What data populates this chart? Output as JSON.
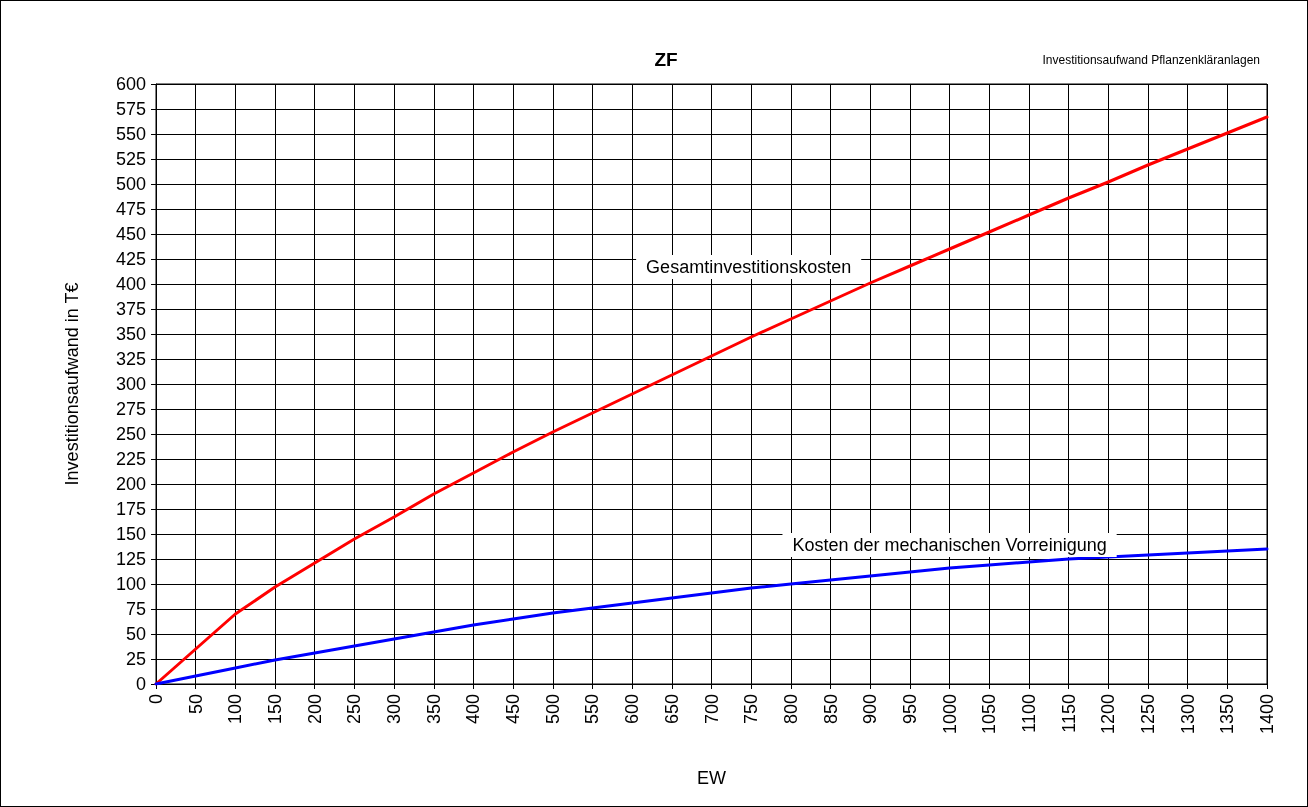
{
  "chart_data": {
    "type": "line",
    "title": "ZF",
    "subtitle": "Investitionsaufwand Pflanzenkläranlagen",
    "xlabel": "EW",
    "ylabel": "Investitionsaufwand in T€",
    "x": [
      0,
      50,
      100,
      150,
      200,
      250,
      300,
      350,
      400,
      450,
      500,
      550,
      600,
      650,
      700,
      750,
      800,
      850,
      900,
      950,
      1000,
      1050,
      1100,
      1150,
      1200,
      1250,
      1300,
      1350,
      1400
    ],
    "series": [
      {
        "name": "Gesamtinvestitionskosten",
        "color": "#ff0000",
        "values": [
          0,
          35,
          70,
          97,
          121,
          145,
          167,
          190,
          211,
          232,
          252,
          271,
          290,
          309,
          328,
          347,
          365,
          383,
          401,
          418,
          435,
          452,
          469,
          486,
          502,
          519,
          535,
          551,
          567
        ]
      },
      {
        "name": "Kosten der mechanischen Vorreinigung",
        "color": "#0000ff",
        "values": [
          0,
          8,
          16,
          24,
          31,
          38,
          45,
          52,
          59,
          65,
          71,
          76,
          81,
          86,
          91,
          96,
          100,
          104,
          108,
          112,
          116,
          119,
          122,
          125,
          127,
          129,
          131,
          133,
          135
        ]
      }
    ],
    "xlim": [
      0,
      1400
    ],
    "xticks": [
      0,
      50,
      100,
      150,
      200,
      250,
      300,
      350,
      400,
      450,
      500,
      550,
      600,
      650,
      700,
      750,
      800,
      850,
      900,
      950,
      1000,
      1050,
      1100,
      1150,
      1200,
      1250,
      1300,
      1350,
      1400
    ],
    "ylim": [
      0,
      600
    ],
    "yticks": [
      0,
      25,
      50,
      75,
      100,
      125,
      150,
      175,
      200,
      225,
      250,
      275,
      300,
      325,
      350,
      375,
      400,
      425,
      450,
      475,
      500,
      525,
      550,
      575,
      600
    ],
    "grid": true,
    "legend": false,
    "marker": "none",
    "line_style": "solid"
  }
}
